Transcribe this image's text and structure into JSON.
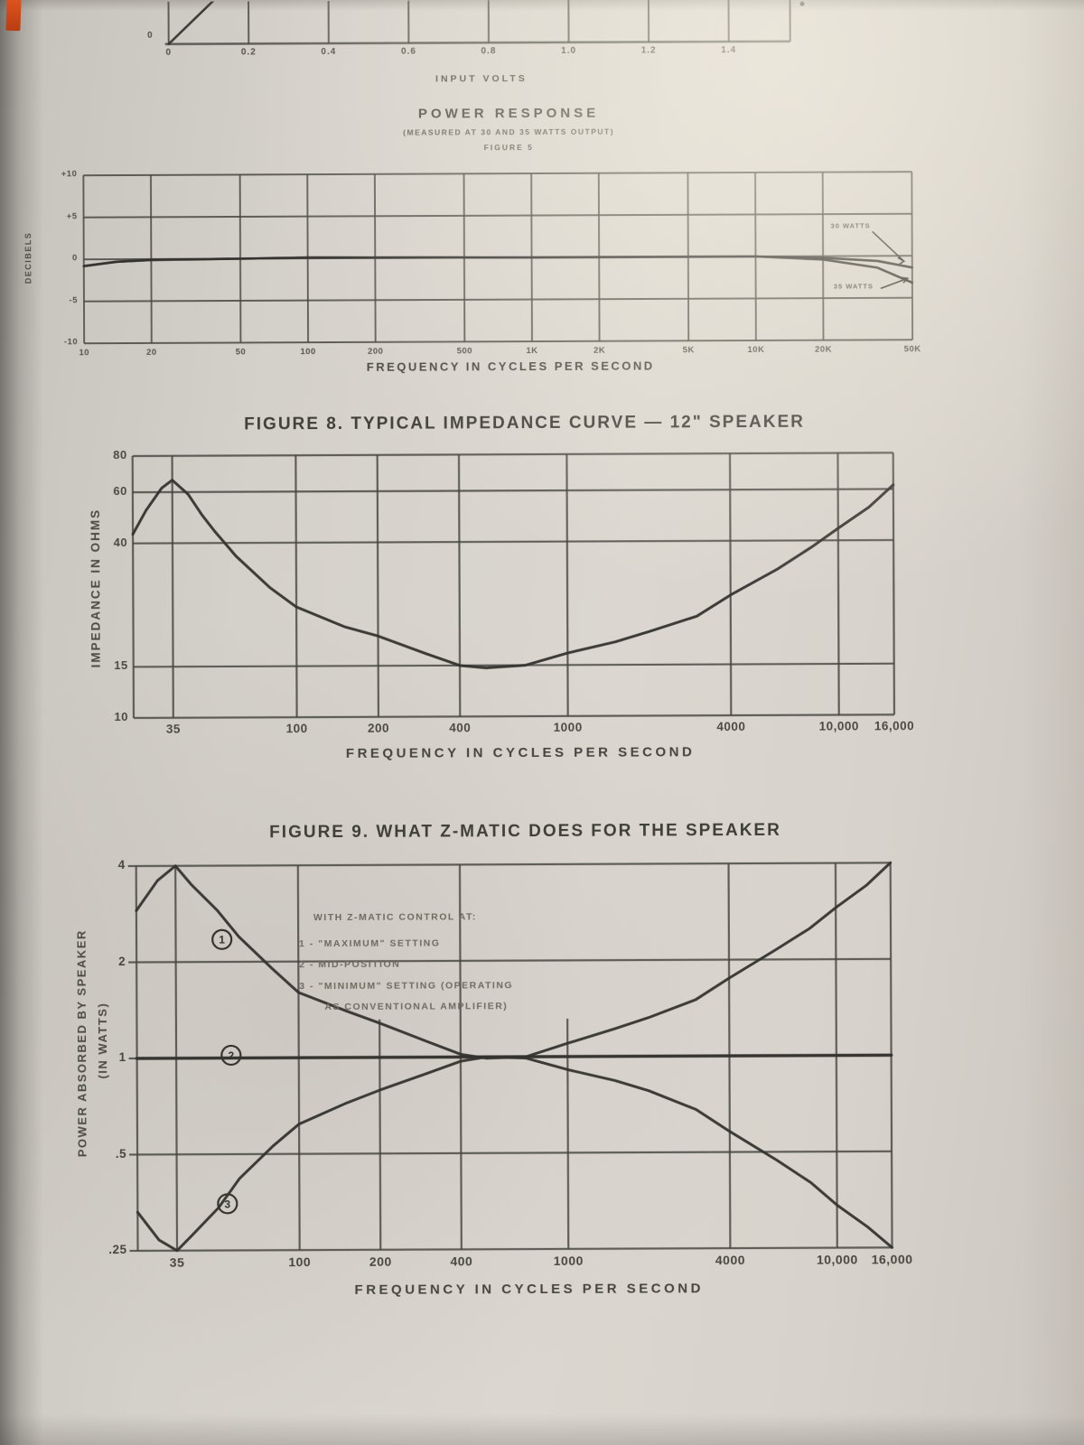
{
  "page": {
    "paper": "#d6d2cc",
    "ink": "#34332e",
    "grid": "#45443e",
    "accent_mark": "#c9441b"
  },
  "chart_data": [
    {
      "id": "input_volts",
      "type": "line",
      "xlabel": "INPUT VOLTS",
      "x_ticks": [
        "0",
        "0.2",
        "0.4",
        "0.6",
        "0.8",
        "1.0",
        "1.2",
        "1.4"
      ],
      "y_origin_label": "0",
      "series": [
        {
          "name": "partial curve",
          "points": [
            [
              0,
              0
            ],
            [
              0.12,
              1
            ]
          ]
        }
      ]
    },
    {
      "id": "power_response",
      "type": "line",
      "title": "POWER RESPONSE",
      "subtitle": "(MEASURED AT 30 AND 35 WATTS OUTPUT)",
      "figure_label": "FIGURE 5",
      "ylabel": "DECIBELS",
      "xlabel": "FREQUENCY IN CYCLES PER SECOND",
      "x_scale": "log",
      "x_ticks": [
        "10",
        "20",
        "50",
        "100",
        "200",
        "500",
        "1K",
        "2K",
        "5K",
        "10K",
        "20K",
        "50K"
      ],
      "x_tick_values": [
        10,
        20,
        50,
        100,
        200,
        500,
        1000,
        2000,
        5000,
        10000,
        20000,
        50000
      ],
      "y_ticks": [
        "+10",
        "+5",
        "0",
        "-5",
        "-10"
      ],
      "y_tick_values": [
        10,
        5,
        0,
        -5,
        -10
      ],
      "ylim": [
        -10,
        10
      ],
      "series": [
        {
          "name": "30 WATTS",
          "points": [
            [
              10,
              -0.8
            ],
            [
              14,
              -0.3
            ],
            [
              20,
              -0.1
            ],
            [
              50,
              0
            ],
            [
              100,
              0.1
            ],
            [
              1000,
              0
            ],
            [
              10000,
              0
            ],
            [
              20000,
              -0.2
            ],
            [
              35000,
              -0.6
            ],
            [
              50000,
              -1.4
            ]
          ]
        },
        {
          "name": "35 WATTS",
          "points": [
            [
              10,
              -0.8
            ],
            [
              14,
              -0.3
            ],
            [
              20,
              -0.1
            ],
            [
              50,
              0
            ],
            [
              100,
              0.1
            ],
            [
              1000,
              0
            ],
            [
              10000,
              0
            ],
            [
              20000,
              -0.4
            ],
            [
              35000,
              -1.4
            ],
            [
              50000,
              -3.2
            ]
          ]
        }
      ]
    },
    {
      "id": "impedance_curve",
      "type": "line",
      "title": "FIGURE 8. TYPICAL IMPEDANCE CURVE — 12\" SPEAKER",
      "ylabel": "IMPEDANCE IN OHMS",
      "xlabel": "FREQUENCY IN CYCLES PER SECOND",
      "x_scale": "log",
      "y_scale": "log",
      "x_ticks": [
        "35",
        "100",
        "200",
        "400",
        "1000",
        "4000",
        "10,000",
        "16,000"
      ],
      "x_tick_values": [
        35,
        100,
        200,
        400,
        1000,
        4000,
        10000,
        16000
      ],
      "y_ticks": [
        "80",
        "60",
        "40",
        "15",
        "10"
      ],
      "y_tick_values": [
        80,
        60,
        40,
        15,
        10
      ],
      "ylim": [
        10,
        80
      ],
      "series": [
        {
          "name": "impedance",
          "points": [
            [
              25,
              43
            ],
            [
              28,
              52
            ],
            [
              32,
              62
            ],
            [
              35,
              66
            ],
            [
              40,
              59
            ],
            [
              45,
              50
            ],
            [
              50,
              44
            ],
            [
              60,
              36
            ],
            [
              80,
              28
            ],
            [
              100,
              24
            ],
            [
              150,
              20.5
            ],
            [
              200,
              19
            ],
            [
              300,
              16.5
            ],
            [
              400,
              15
            ],
            [
              500,
              14.7
            ],
            [
              700,
              15
            ],
            [
              1000,
              16.5
            ],
            [
              1500,
              18
            ],
            [
              2000,
              19.5
            ],
            [
              3000,
              22
            ],
            [
              4000,
              26
            ],
            [
              6000,
              32
            ],
            [
              8000,
              38
            ],
            [
              10000,
              44
            ],
            [
              13000,
              52
            ],
            [
              16000,
              62
            ]
          ]
        }
      ]
    },
    {
      "id": "zmatic",
      "type": "line",
      "title": "FIGURE 9. WHAT Z-MATIC DOES FOR THE SPEAKER",
      "ylabel_line1": "POWER ABSORBED BY SPEAKER",
      "ylabel_line2": "(IN WATTS)",
      "xlabel": "FREQUENCY IN CYCLES PER SECOND",
      "x_scale": "log",
      "y_scale": "log",
      "x_ticks": [
        "35",
        "100",
        "200",
        "400",
        "1000",
        "4000",
        "10,000",
        "16,000"
      ],
      "x_tick_values": [
        35,
        100,
        200,
        400,
        1000,
        4000,
        10000,
        16000
      ],
      "y_ticks": [
        "4",
        "2",
        "1",
        ".5",
        ".25"
      ],
      "y_tick_values": [
        4,
        2,
        1,
        0.5,
        0.25
      ],
      "ylim": [
        0.25,
        4
      ],
      "legend": [
        "WITH Z-MATIC CONTROL AT:",
        "1 - \"MAXIMUM\" SETTING",
        "2 - MID-POSITION",
        "3 - \"MINIMUM\" SETTING (OPERATING",
        "AS CONVENTIONAL AMPLIFIER)"
      ],
      "series": [
        {
          "name": "1 MAXIMUM SETTING",
          "points": [
            [
              25,
              2.9
            ],
            [
              30,
              3.6
            ],
            [
              35,
              4.0
            ],
            [
              40,
              3.5
            ],
            [
              50,
              2.9
            ],
            [
              60,
              2.4
            ],
            [
              80,
              1.9
            ],
            [
              100,
              1.6
            ],
            [
              150,
              1.4
            ],
            [
              200,
              1.28
            ],
            [
              300,
              1.12
            ],
            [
              400,
              1.02
            ],
            [
              500,
              0.99
            ],
            [
              700,
              1.0
            ],
            [
              1000,
              1.1
            ],
            [
              1500,
              1.22
            ],
            [
              2000,
              1.32
            ],
            [
              3000,
              1.5
            ],
            [
              4000,
              1.75
            ],
            [
              6000,
              2.15
            ],
            [
              8000,
              2.5
            ],
            [
              10000,
              2.9
            ],
            [
              13000,
              3.4
            ],
            [
              16000,
              4.0
            ]
          ]
        },
        {
          "name": "2 MID-POSITION",
          "points": [
            [
              25,
              1.0
            ],
            [
              400,
              1.0
            ],
            [
              16000,
              1.0
            ]
          ]
        },
        {
          "name": "3 MINIMUM SETTING",
          "points": [
            [
              25,
              0.33
            ],
            [
              30,
              0.27
            ],
            [
              35,
              0.25
            ],
            [
              40,
              0.28
            ],
            [
              50,
              0.34
            ],
            [
              60,
              0.42
            ],
            [
              80,
              0.53
            ],
            [
              100,
              0.62
            ],
            [
              150,
              0.72
            ],
            [
              200,
              0.79
            ],
            [
              300,
              0.89
            ],
            [
              400,
              0.97
            ],
            [
              500,
              1.0
            ],
            [
              700,
              0.99
            ],
            [
              1000,
              0.91
            ],
            [
              1500,
              0.84
            ],
            [
              2000,
              0.78
            ],
            [
              3000,
              0.68
            ],
            [
              4000,
              0.58
            ],
            [
              6000,
              0.47
            ],
            [
              8000,
              0.4
            ],
            [
              10000,
              0.34
            ],
            [
              13000,
              0.29
            ],
            [
              16000,
              0.25
            ]
          ]
        }
      ],
      "markers": [
        {
          "label": "1",
          "freq": 52,
          "value": 2.35
        },
        {
          "label": "2",
          "freq": 56,
          "value": 1.02
        },
        {
          "label": "3",
          "freq": 54,
          "value": 0.35
        }
      ]
    }
  ]
}
